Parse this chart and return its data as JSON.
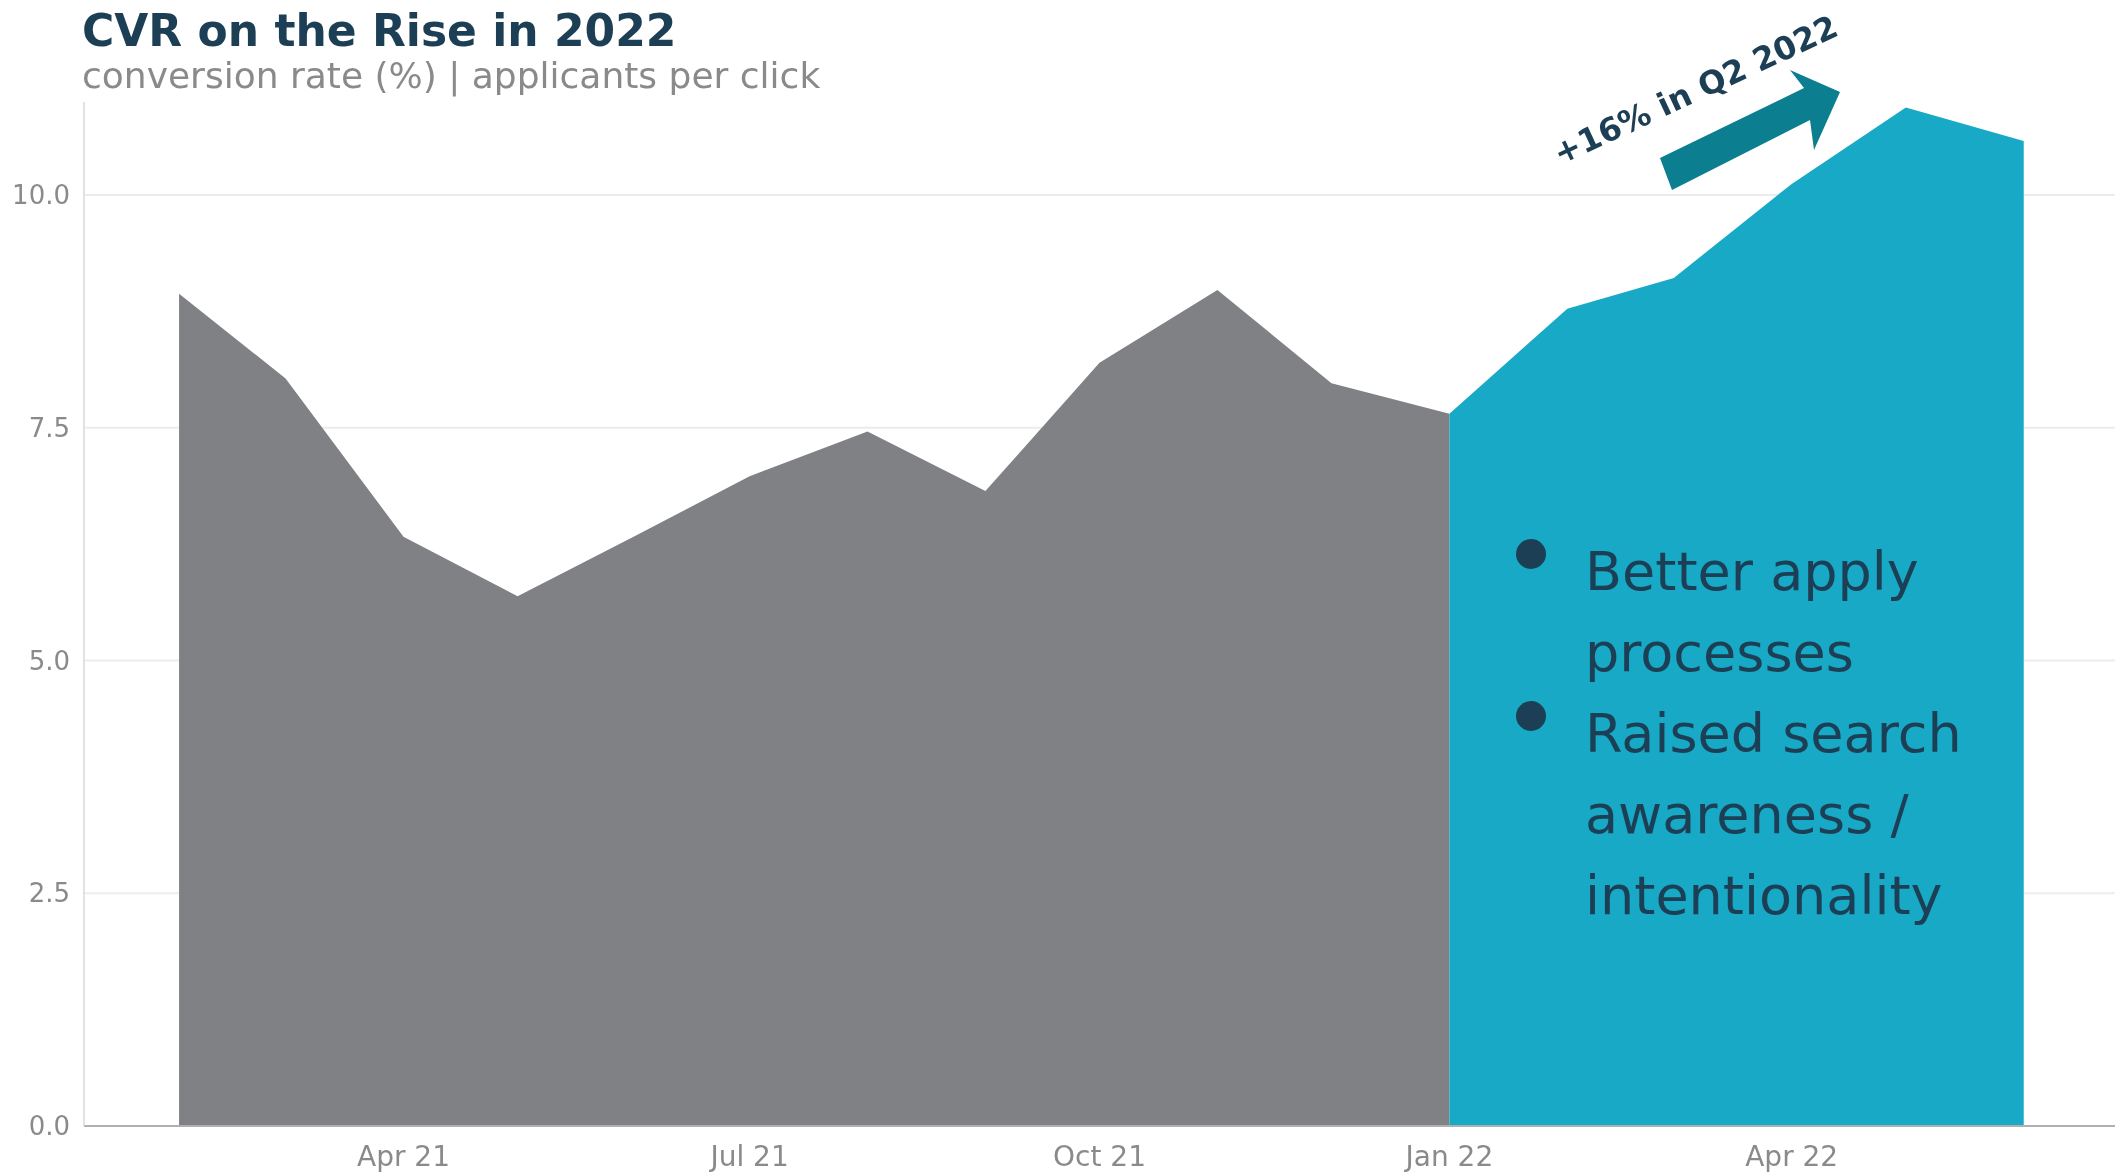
{
  "chart_data": {
    "type": "area",
    "title": "CVR on the Rise in 2022",
    "subtitle": "conversion rate (%) | applicants per click",
    "series": [
      {
        "color": "#808184",
        "x": [
          "2021-02-01",
          "2021-03-01",
          "2021-04-01",
          "2021-05-01",
          "2021-06-01",
          "2021-07-01",
          "2021-08-01",
          "2021-09-01",
          "2021-10-01",
          "2021-11-01",
          "2021-12-01",
          "2022-01-01"
        ],
        "values": [
          8.94,
          8.03,
          6.33,
          5.69,
          6.34,
          6.98,
          7.46,
          6.82,
          8.2,
          8.98,
          7.98,
          7.65
        ]
      },
      {
        "color": "#17a9c5",
        "x": [
          "2022-01-01",
          "2022-02-01",
          "2022-03-01",
          "2022-04-01",
          "2022-05-01",
          "2022-06-01"
        ],
        "values": [
          7.65,
          8.78,
          9.11,
          10.12,
          10.94,
          10.58
        ]
      }
    ],
    "xlim": [
      "2021-01-07",
      "2022-06-25"
    ],
    "xticks": [
      {
        "value": "2021-04-01",
        "label": "Apr 21"
      },
      {
        "value": "2021-07-01",
        "label": "Jul 21"
      },
      {
        "value": "2021-10-01",
        "label": "Oct 21"
      },
      {
        "value": "2022-01-01",
        "label": "Jan 22"
      },
      {
        "value": "2022-04-01",
        "label": "Apr 22"
      }
    ],
    "ylim": [
      0,
      11
    ],
    "yticks": [
      {
        "value": 0,
        "label": "0.0"
      },
      {
        "value": 2.5,
        "label": "2.5"
      },
      {
        "value": 5,
        "label": "5.0"
      },
      {
        "value": 7.5,
        "label": "7.5"
      },
      {
        "value": 10,
        "label": "10.0"
      }
    ],
    "grid": "y",
    "annotations": [
      "+16% in Q2 2022",
      "Better apply processes",
      "Raised search awareness / intentionality"
    ]
  }
}
